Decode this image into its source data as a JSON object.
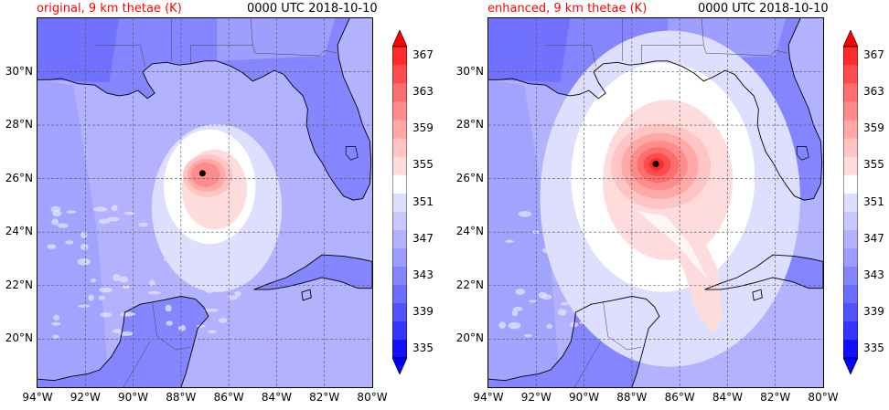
{
  "panels": [
    {
      "title": "original, 9 km thetae (K)",
      "time": "0000 UTC 2018-10-10",
      "storm_center": {
        "lon": -87.1,
        "lat": 26.2
      },
      "core_max_level": 361,
      "warm_radius_deg": 1.6
    },
    {
      "title": "enhanced, 9 km thetae (K)",
      "time": "0000 UTC 2018-10-10",
      "storm_center": {
        "lon": -87.0,
        "lat": 26.55
      },
      "core_max_level": 367,
      "warm_radius_deg": 3.2
    }
  ],
  "axes": {
    "lon_range": [
      -94,
      -80
    ],
    "lat_range": [
      18.2,
      32.0
    ],
    "lon_ticks": [
      "94°W",
      "92°W",
      "90°W",
      "88°W",
      "86°W",
      "84°W",
      "82°W",
      "80°W"
    ],
    "lat_ticks": [
      "20°N",
      "22°N",
      "24°N",
      "26°N",
      "28°N",
      "30°N"
    ]
  },
  "colorbar": {
    "min": 335,
    "max": 367,
    "step": 2,
    "tick_labels": [
      "335",
      "339",
      "343",
      "347",
      "351",
      "355",
      "359",
      "363",
      "367"
    ],
    "colors": [
      "#1010ff",
      "#3535ff",
      "#5252ff",
      "#6c6cff",
      "#8585ff",
      "#9d9dff",
      "#b2b2ff",
      "#c8c8ff",
      "#dedeff",
      "#ffffff",
      "#ffdcdc",
      "#ffc4c4",
      "#ffa8a8",
      "#ff8c8c",
      "#ff6e6e",
      "#ff4c4c",
      "#ff2a2a"
    ],
    "extend_low_color": "#0000ff",
    "extend_high_color": "#ff0000"
  },
  "fill_colors": {
    "ocean": "#b2b2ff",
    "west_gulf": "#9d9dff",
    "land": "#8585ff",
    "far_land": "#6c6cff"
  }
}
